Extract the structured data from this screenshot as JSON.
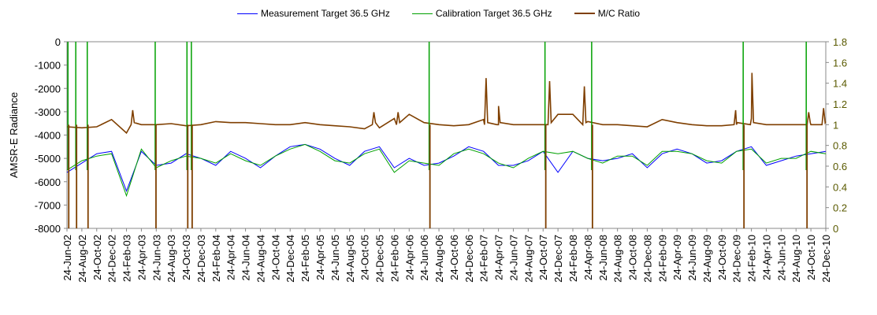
{
  "chart_data": {
    "type": "line",
    "title": "",
    "ylabel": "AMSR-E Radiance",
    "y2label": "",
    "ylim": [
      -8000,
      0
    ],
    "y2lim": [
      0,
      1.8
    ],
    "yticks": [
      "0",
      "-1000",
      "-2000",
      "-3000",
      "-4000",
      "-5000",
      "-6000",
      "-7000",
      "-8000"
    ],
    "y2ticks": [
      "1.8",
      "1.6",
      "1.4",
      "1.2",
      "1",
      "0.8",
      "0.6",
      "0.4",
      "0.2",
      "0"
    ],
    "x_start": "2002-06-24",
    "x_end": "2010-12-24",
    "categories": [
      "24-Jun-02",
      "24-Aug-02",
      "24-Oct-02",
      "24-Dec-02",
      "24-Feb-03",
      "24-Apr-03",
      "24-Jun-03",
      "24-Aug-03",
      "24-Oct-03",
      "24-Dec-03",
      "24-Feb-04",
      "24-Apr-04",
      "24-Jun-04",
      "24-Aug-04",
      "24-Oct-04",
      "24-Dec-04",
      "24-Feb-05",
      "24-Apr-05",
      "24-Jun-05",
      "24-Aug-05",
      "24-Oct-05",
      "24-Dec-05",
      "24-Feb-06",
      "24-Apr-06",
      "24-Jun-06",
      "24-Aug-06",
      "24-Oct-06",
      "24-Dec-06",
      "24-Feb-07",
      "24-Apr-07",
      "24-Jun-07",
      "24-Aug-07",
      "24-Oct-07",
      "24-Dec-07",
      "24-Feb-08",
      "24-Apr-08",
      "24-Jun-08",
      "24-Aug-08",
      "24-Oct-08",
      "24-Dec-08",
      "24-Feb-09",
      "24-Apr-09",
      "24-Jun-09",
      "24-Aug-09",
      "24-Oct-09",
      "24-Dec-09",
      "24-Feb-10",
      "24-Apr-10",
      "24-Jun-10",
      "24-Aug-10",
      "24-Oct-10",
      "24-Dec-10"
    ],
    "series": [
      {
        "name": "Measurement Target 36.5 GHz",
        "color": "#0000ff",
        "axis": "left",
        "values": [
          -5600,
          -5200,
          -4800,
          -4700,
          -6400,
          -4700,
          -5300,
          -5200,
          -4800,
          -5000,
          -5300,
          -4700,
          -5000,
          -5400,
          -4900,
          -4500,
          -4400,
          -4600,
          -5000,
          -5300,
          -4700,
          -4500,
          -5400,
          -5000,
          -5300,
          -5200,
          -4900,
          -4500,
          -4700,
          -5300,
          -5300,
          -5100,
          -4700,
          -5600,
          -4700,
          -5000,
          -5100,
          -5000,
          -4800,
          -5400,
          -4800,
          -4600,
          -4800,
          -5200,
          -5100,
          -4700,
          -4500,
          -5300,
          -5100,
          -4900,
          -4800,
          -4700
        ]
      },
      {
        "name": "Calibration Target 36.5 GHz",
        "color": "#00a000",
        "axis": "left",
        "values": [
          -5500,
          -5100,
          -4900,
          -4800,
          -6600,
          -4600,
          -5400,
          -5100,
          -4900,
          -5000,
          -5200,
          -4800,
          -5100,
          -5300,
          -4900,
          -4600,
          -4400,
          -4700,
          -5100,
          -5200,
          -4800,
          -4600,
          -5600,
          -5100,
          -5200,
          -5300,
          -4800,
          -4600,
          -4800,
          -5200,
          -5400,
          -5000,
          -4700,
          -4800,
          -4700,
          -5000,
          -5200,
          -4900,
          -4900,
          -5300,
          -4700,
          -4700,
          -4800,
          -5100,
          -5200,
          -4700,
          -4600,
          -5200,
          -5000,
          -5000,
          -4700,
          -4800
        ]
      },
      {
        "name": "M/C Ratio",
        "color": "#7f3f00",
        "axis": "right",
        "values": [
          0.98,
          0.97,
          0.98,
          1.05,
          0.92,
          1.0,
          1.0,
          1.01,
          0.99,
          1.0,
          1.03,
          1.02,
          1.02,
          1.01,
          1.0,
          1.0,
          1.02,
          1.0,
          0.99,
          0.98,
          0.96,
          0.97,
          1.06,
          1.1,
          1.02,
          1.0,
          0.99,
          1.0,
          1.05,
          1.0,
          1.0,
          1.0,
          1.0,
          1.1,
          1.1,
          1.03,
          1.0,
          1.0,
          0.99,
          0.98,
          1.05,
          1.02,
          1.0,
          0.99,
          0.99,
          1.0,
          1.06,
          1.0,
          1.0,
          1.0,
          1.0,
          1.03
        ],
        "peaks": [
          {
            "date": "2003-03-20",
            "value": 1.14
          },
          {
            "date": "2005-12-01",
            "value": 1.12
          },
          {
            "date": "2006-03-10",
            "value": 1.12
          },
          {
            "date": "2007-03-05",
            "value": 1.45
          },
          {
            "date": "2007-04-25",
            "value": 1.18
          },
          {
            "date": "2007-11-20",
            "value": 1.42
          },
          {
            "date": "2008-04-10",
            "value": 1.37
          },
          {
            "date": "2009-12-20",
            "value": 1.14
          },
          {
            "date": "2010-02-25",
            "value": 1.5
          },
          {
            "date": "2010-10-15",
            "value": 1.12
          },
          {
            "date": "2010-12-15",
            "value": 1.16
          }
        ]
      }
    ],
    "spikes": [
      "2002-06-28",
      "2002-07-30",
      "2002-09-15",
      "2003-06-20",
      "2003-10-28",
      "2003-11-15",
      "2006-07-15",
      "2007-11-01",
      "2008-05-10",
      "2010-01-20",
      "2010-10-05"
    ],
    "legend_position": "top-center",
    "grid": false
  }
}
